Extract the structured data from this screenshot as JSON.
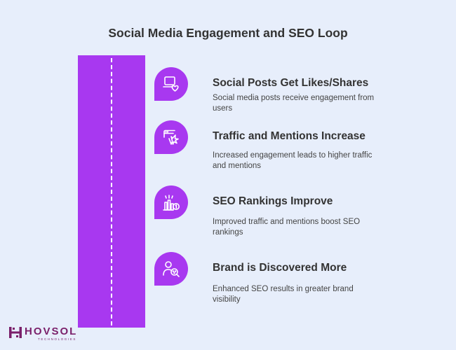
{
  "title": "Social Media Engagement and SEO Loop",
  "steps": [
    {
      "title": "Social Posts Get Likes/Shares",
      "description": "Social media posts receive engagement from users",
      "icon": "laptop-heart-icon"
    },
    {
      "title": "Traffic and Mentions Increase",
      "description": "Increased engagement leads to higher traffic and mentions",
      "icon": "browser-click-icon"
    },
    {
      "title": "SEO Rankings Improve",
      "description": "Improved traffic and mentions boost SEO rankings",
      "icon": "ranking-chart-icon"
    },
    {
      "title": "Brand is Discovered More",
      "description": "Enhanced SEO results in greater brand visibility",
      "icon": "user-search-icon"
    }
  ],
  "logo": {
    "name": "HOVSOL",
    "tagline": "TECHNOLOGIES"
  },
  "colors": {
    "accent": "#a838f0",
    "background": "#e7eefb",
    "logo": "#7a1f6a"
  }
}
